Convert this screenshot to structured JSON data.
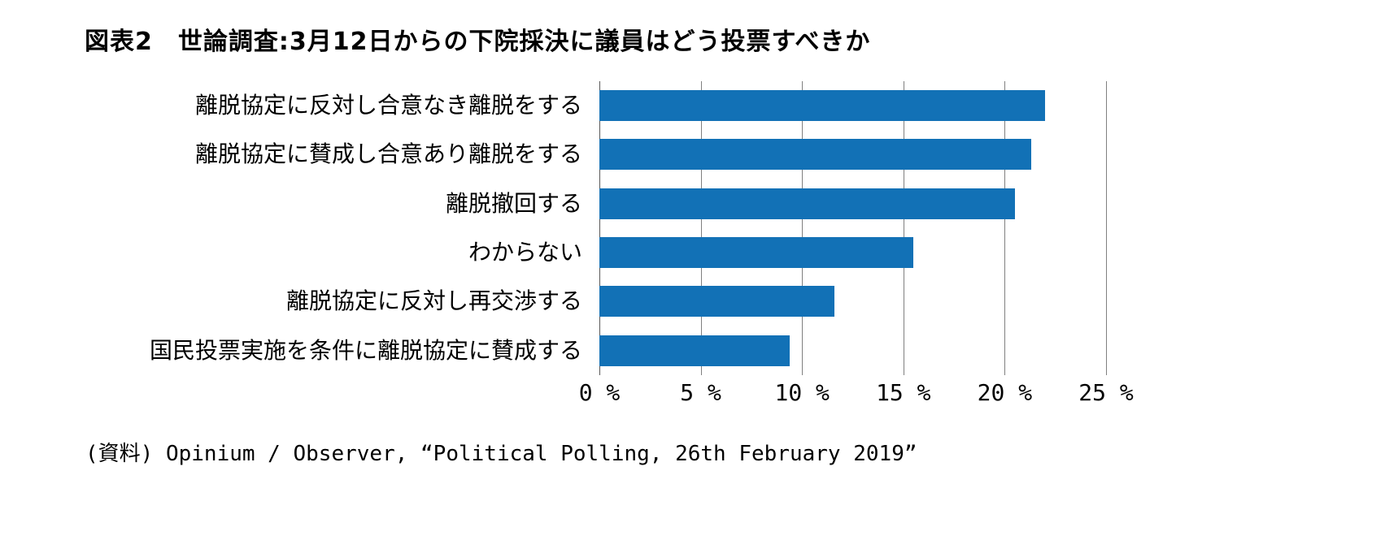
{
  "chart_data": {
    "type": "bar",
    "orientation": "horizontal",
    "title": "図表2　世論調査:3月12日からの下院採決に議員はどう投票すべきか",
    "categories": [
      "離脱協定に反対し合意なき離脱をする",
      "離脱協定に賛成し合意あり離脱をする",
      "離脱撤回する",
      "わからない",
      "離脱協定に反対し再交渉する",
      "国民投票実施を条件に離脱協定に賛成する"
    ],
    "values": [
      22,
      21.3,
      20.5,
      15.5,
      11.6,
      9.4
    ],
    "xlabel": "",
    "ylabel": "",
    "xlim": [
      0,
      25
    ],
    "tick_values": [
      0,
      5,
      10,
      15,
      20,
      25
    ],
    "tick_labels": [
      "0 %",
      "5 %",
      "10 %",
      "15 %",
      "20 %",
      "25 %"
    ],
    "grid": true,
    "legend": "none",
    "bar_color": "#1271B6",
    "source": "(資料) Opinium / Observer, “Political Polling, 26th February 2019”"
  }
}
